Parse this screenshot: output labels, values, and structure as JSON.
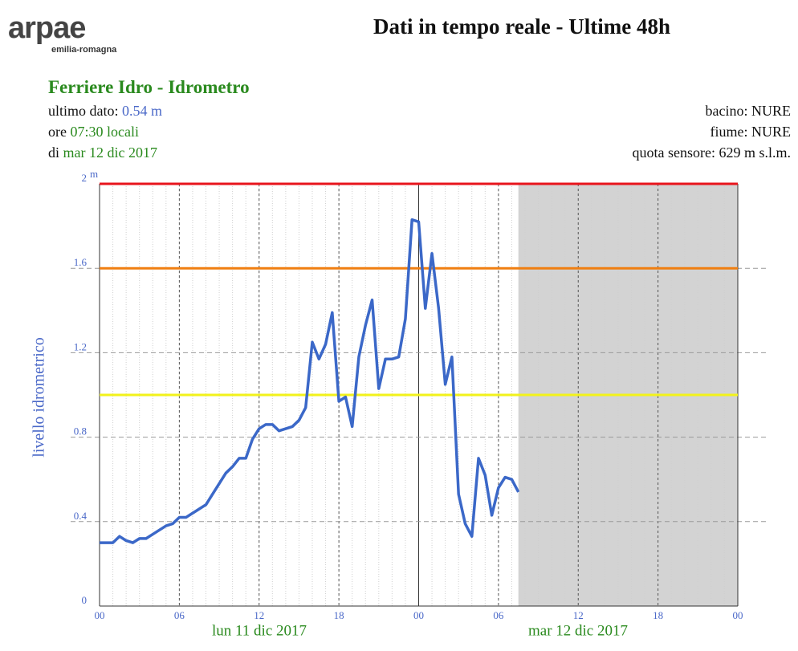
{
  "header": {
    "logo": "arpae",
    "logo_subtitle": "emilia-romagna"
  },
  "station": {
    "name": "Ferriere Idro - Idrometro",
    "last_label": "ultimo dato:",
    "last_value": "0.54 m",
    "time_label": "ore",
    "time_value": "07:30 locali",
    "date_label": "di",
    "date_value": "mar 12 dic 2017",
    "basin": "bacino: NURE",
    "river": "fiume: NURE",
    "altitude": "quota sensore: 629 m s.l.m."
  },
  "chart_data": {
    "type": "line",
    "title": "Dati in tempo reale - Ultime 48h",
    "ylabel": "livello idrometrico",
    "y_unit": "m",
    "date_labels": [
      "lun 11 dic 2017",
      "mar 12 dic 2017"
    ],
    "x": [
      0,
      0.5,
      1,
      1.5,
      2,
      2.5,
      3,
      3.5,
      4,
      4.5,
      5,
      5.5,
      6,
      6.5,
      7,
      7.5,
      8,
      8.5,
      9,
      9.5,
      10,
      10.5,
      11,
      11.5,
      12,
      12.5,
      13,
      13.5,
      14,
      14.5,
      15,
      15.5,
      16,
      16.5,
      17,
      17.5,
      18,
      18.5,
      19,
      19.5,
      20,
      20.5,
      21,
      21.5,
      22,
      22.5,
      23,
      23.5,
      24,
      24.5,
      25,
      25.5,
      26,
      26.5,
      27,
      27.5,
      28,
      28.5,
      29,
      29.5,
      30,
      30.5,
      31,
      31.5
    ],
    "series": [
      {
        "color": "#3b68c8",
        "values": [
          0.3,
          0.3,
          0.3,
          0.33,
          0.31,
          0.3,
          0.32,
          0.32,
          0.34,
          0.36,
          0.38,
          0.39,
          0.42,
          0.42,
          0.44,
          0.46,
          0.48,
          0.53,
          0.58,
          0.63,
          0.66,
          0.7,
          0.7,
          0.79,
          0.84,
          0.86,
          0.86,
          0.83,
          0.84,
          0.85,
          0.88,
          0.94,
          1.25,
          1.17,
          1.24,
          1.39,
          0.97,
          0.99,
          0.85,
          1.18,
          1.33,
          1.45,
          1.03,
          1.17,
          1.17,
          1.18,
          1.36,
          1.83,
          1.82,
          1.41,
          1.67,
          1.41,
          1.05,
          1.18,
          0.53,
          0.39,
          0.33,
          0.7,
          0.62,
          0.43,
          0.56,
          0.61,
          0.6,
          0.54
        ]
      }
    ],
    "thresholds": [
      {
        "value": 2,
        "color": "#e8141c"
      },
      {
        "value": 1.6,
        "color": "#f07e10"
      },
      {
        "value": 1.0,
        "color": "#f2f21a"
      }
    ],
    "xlim": [
      0,
      48
    ],
    "xticks": [
      {
        "value": 0,
        "label": "00"
      },
      {
        "value": 6,
        "label": "06"
      },
      {
        "value": 12,
        "label": "12"
      },
      {
        "value": 18,
        "label": "18"
      },
      {
        "value": 24,
        "label": "00"
      },
      {
        "value": 30,
        "label": "06"
      },
      {
        "value": 36,
        "label": "12"
      },
      {
        "value": 42,
        "label": "18"
      },
      {
        "value": 48,
        "label": "00"
      }
    ],
    "ylim": [
      0,
      2
    ],
    "yticks": [
      0,
      0.4,
      0.8,
      1.2,
      1.6,
      2
    ],
    "grid": true
  }
}
